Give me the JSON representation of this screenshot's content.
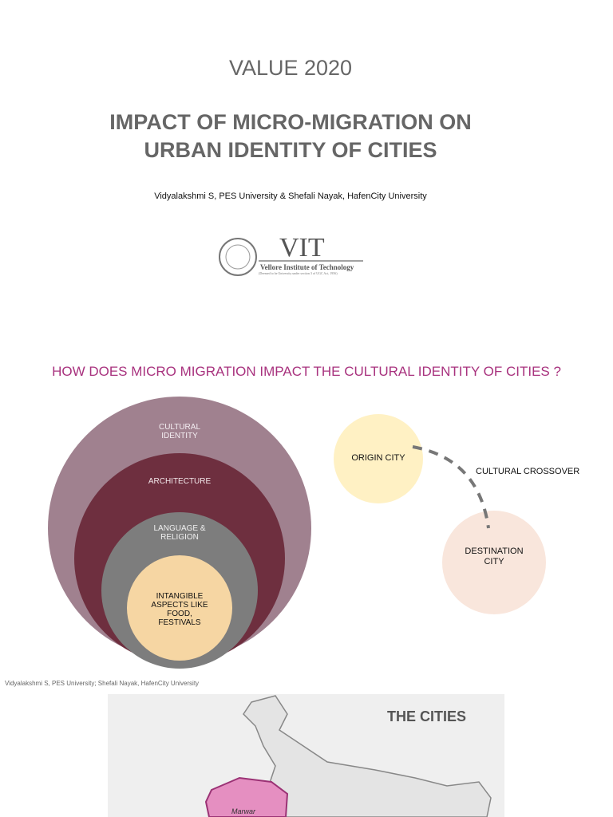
{
  "header": {
    "title": "VALUE 2020",
    "subtitle_lines": [
      "IMPACT OF MICRO-MIGRATION ON",
      "URBAN IDENTITY OF CITIES"
    ],
    "authors": "Vidyalakshmi S, PES University & Shefali Nayak, HafenCity University"
  },
  "logo": {
    "name": "VIT",
    "full_name": "Vellore Institute of Technology",
    "note": "(Deemed to be University under section 3 of UGC Act, 1956)"
  },
  "section": {
    "question": "HOW DOES MICRO MIGRATION IMPACT THE CULTURAL IDENTITY OF CITIES ?"
  },
  "diagram": {
    "layers": [
      "CULTURAL IDENTITY",
      "ARCHITECTURE",
      "LANGUAGE & RELIGION",
      "INTANGIBLE ASPECTS LIKE FOOD, FESTIVALS"
    ],
    "origin": "ORIGIN CITY",
    "link": "CULTURAL CROSSOVER",
    "destination": "DESTINATION CITY"
  },
  "caption": "Vidyalakshmi S, PES University; Shefali Nayak, HafenCity University",
  "map": {
    "title": "THE CITIES",
    "region": "Marwar"
  }
}
